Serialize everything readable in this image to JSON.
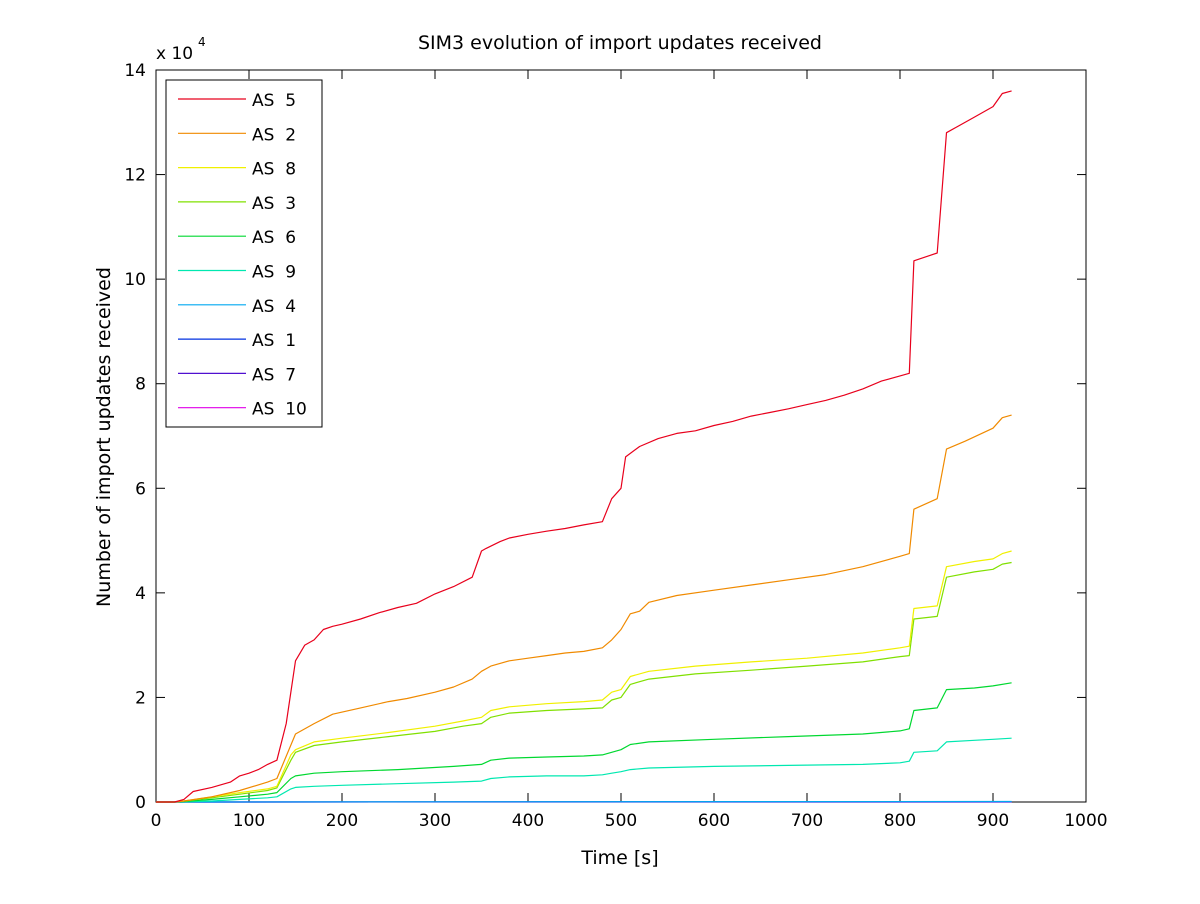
{
  "chart_data": {
    "type": "line",
    "title": "SIM3 evolution of import updates received",
    "xlabel": "Time [s]",
    "ylabel": "Number of import updates received",
    "y_multiplier_label": "x 10",
    "y_multiplier_exponent": "4",
    "xlim": [
      0,
      1000
    ],
    "ylim": [
      0,
      14
    ],
    "x_ticks": [
      0,
      100,
      200,
      300,
      400,
      500,
      600,
      700,
      800,
      900,
      1000
    ],
    "y_ticks": [
      0,
      2,
      4,
      6,
      8,
      10,
      12,
      14
    ],
    "x_tick_labels": [
      "0",
      "100",
      "200",
      "300",
      "400",
      "500",
      "600",
      "700",
      "800",
      "900",
      "1000"
    ],
    "y_tick_labels": [
      "0",
      "2",
      "4",
      "6",
      "8",
      "10",
      "12",
      "14"
    ],
    "grid": false,
    "legend_position": "top-left",
    "series": [
      {
        "name": "AS  5",
        "color": "#e8001c",
        "x": [
          0,
          20,
          30,
          40,
          60,
          80,
          90,
          100,
          110,
          120,
          130,
          140,
          150,
          160,
          170,
          180,
          190,
          200,
          220,
          240,
          260,
          280,
          300,
          320,
          340,
          350,
          355,
          370,
          380,
          400,
          420,
          440,
          460,
          480,
          490,
          500,
          505,
          520,
          540,
          560,
          580,
          600,
          620,
          640,
          660,
          680,
          700,
          720,
          740,
          760,
          780,
          800,
          810,
          815,
          840,
          850,
          860,
          880,
          900,
          910,
          920
        ],
        "y": [
          0,
          0,
          0.05,
          0.2,
          0.28,
          0.38,
          0.5,
          0.55,
          0.62,
          0.72,
          0.8,
          1.5,
          2.7,
          3.0,
          3.1,
          3.3,
          3.36,
          3.4,
          3.5,
          3.62,
          3.72,
          3.8,
          3.98,
          4.12,
          4.3,
          4.8,
          4.85,
          4.98,
          5.05,
          5.12,
          5.18,
          5.23,
          5.3,
          5.36,
          5.8,
          6.0,
          6.6,
          6.8,
          6.95,
          7.05,
          7.1,
          7.2,
          7.28,
          7.38,
          7.45,
          7.52,
          7.6,
          7.68,
          7.78,
          7.9,
          8.05,
          8.15,
          8.2,
          10.35,
          10.5,
          12.8,
          12.9,
          13.1,
          13.3,
          13.55,
          13.6
        ]
      },
      {
        "name": "AS  2",
        "color": "#f08a00",
        "x": [
          0,
          20,
          30,
          60,
          90,
          120,
          130,
          150,
          170,
          190,
          220,
          250,
          270,
          300,
          320,
          340,
          350,
          360,
          380,
          400,
          420,
          440,
          460,
          480,
          490,
          500,
          510,
          520,
          530,
          560,
          600,
          640,
          680,
          720,
          760,
          800,
          810,
          815,
          840,
          850,
          870,
          900,
          910,
          920
        ],
        "y": [
          0,
          0,
          0.02,
          0.1,
          0.22,
          0.38,
          0.45,
          1.3,
          1.5,
          1.68,
          1.8,
          1.92,
          1.98,
          2.1,
          2.2,
          2.35,
          2.5,
          2.6,
          2.7,
          2.75,
          2.8,
          2.85,
          2.88,
          2.95,
          3.1,
          3.3,
          3.6,
          3.65,
          3.82,
          3.95,
          4.05,
          4.15,
          4.25,
          4.35,
          4.5,
          4.7,
          4.75,
          5.6,
          5.8,
          6.75,
          6.9,
          7.15,
          7.35,
          7.4
        ]
      },
      {
        "name": "AS  8",
        "color": "#f0f000",
        "x": [
          0,
          20,
          30,
          60,
          90,
          120,
          130,
          145,
          150,
          170,
          200,
          250,
          300,
          330,
          350,
          360,
          380,
          420,
          460,
          480,
          490,
          500,
          510,
          530,
          580,
          640,
          700,
          760,
          800,
          810,
          815,
          840,
          850,
          880,
          900,
          910,
          920
        ],
        "y": [
          0,
          0,
          0.02,
          0.1,
          0.18,
          0.25,
          0.3,
          0.9,
          1.0,
          1.15,
          1.22,
          1.33,
          1.45,
          1.55,
          1.62,
          1.75,
          1.82,
          1.88,
          1.92,
          1.95,
          2.1,
          2.15,
          2.4,
          2.5,
          2.6,
          2.68,
          2.75,
          2.85,
          2.95,
          2.98,
          3.7,
          3.75,
          4.5,
          4.6,
          4.65,
          4.75,
          4.8
        ]
      },
      {
        "name": "AS  3",
        "color": "#80e000",
        "x": [
          0,
          20,
          30,
          60,
          90,
          120,
          130,
          145,
          150,
          170,
          200,
          250,
          300,
          330,
          350,
          360,
          380,
          420,
          460,
          480,
          490,
          500,
          510,
          530,
          580,
          640,
          700,
          760,
          800,
          810,
          815,
          840,
          850,
          880,
          900,
          910,
          920
        ],
        "y": [
          0,
          0,
          0.02,
          0.08,
          0.15,
          0.22,
          0.27,
          0.8,
          0.95,
          1.08,
          1.15,
          1.25,
          1.35,
          1.45,
          1.5,
          1.62,
          1.7,
          1.75,
          1.78,
          1.8,
          1.95,
          2.0,
          2.25,
          2.35,
          2.45,
          2.52,
          2.6,
          2.68,
          2.78,
          2.8,
          3.5,
          3.55,
          4.3,
          4.4,
          4.45,
          4.55,
          4.58
        ]
      },
      {
        "name": "AS  6",
        "color": "#00d830",
        "x": [
          0,
          20,
          30,
          60,
          90,
          120,
          130,
          145,
          150,
          170,
          200,
          260,
          320,
          350,
          360,
          380,
          420,
          460,
          480,
          490,
          500,
          510,
          530,
          600,
          680,
          760,
          800,
          810,
          815,
          840,
          850,
          880,
          900,
          920
        ],
        "y": [
          0,
          0,
          0.01,
          0.05,
          0.1,
          0.15,
          0.18,
          0.45,
          0.5,
          0.55,
          0.58,
          0.62,
          0.68,
          0.72,
          0.8,
          0.84,
          0.86,
          0.88,
          0.9,
          0.95,
          1.0,
          1.1,
          1.15,
          1.2,
          1.25,
          1.3,
          1.36,
          1.4,
          1.75,
          1.8,
          2.15,
          2.18,
          2.22,
          2.28
        ]
      },
      {
        "name": "AS  9",
        "color": "#00e8b0",
        "x": [
          0,
          20,
          30,
          60,
          90,
          120,
          130,
          145,
          150,
          170,
          200,
          260,
          320,
          350,
          360,
          380,
          420,
          460,
          480,
          490,
          500,
          510,
          530,
          600,
          680,
          760,
          800,
          810,
          815,
          840,
          850,
          880,
          900,
          920
        ],
        "y": [
          0,
          0,
          0,
          0.02,
          0.05,
          0.08,
          0.1,
          0.25,
          0.28,
          0.3,
          0.32,
          0.35,
          0.38,
          0.4,
          0.45,
          0.48,
          0.5,
          0.5,
          0.52,
          0.55,
          0.58,
          0.62,
          0.65,
          0.68,
          0.7,
          0.72,
          0.75,
          0.78,
          0.95,
          0.98,
          1.15,
          1.18,
          1.2,
          1.22
        ]
      },
      {
        "name": "AS  4",
        "color": "#00a8f0",
        "x": [
          0,
          920
        ],
        "y": [
          0,
          0.01
        ]
      },
      {
        "name": "AS  1",
        "color": "#0030e0",
        "x": [
          0,
          920
        ],
        "y": [
          0,
          0.005
        ]
      },
      {
        "name": "AS  7",
        "color": "#5010d0",
        "x": [
          0,
          920
        ],
        "y": [
          0,
          0.003
        ]
      },
      {
        "name": "AS  10",
        "color": "#e000e8",
        "x": [
          0,
          920
        ],
        "y": [
          0,
          0
        ]
      }
    ]
  }
}
